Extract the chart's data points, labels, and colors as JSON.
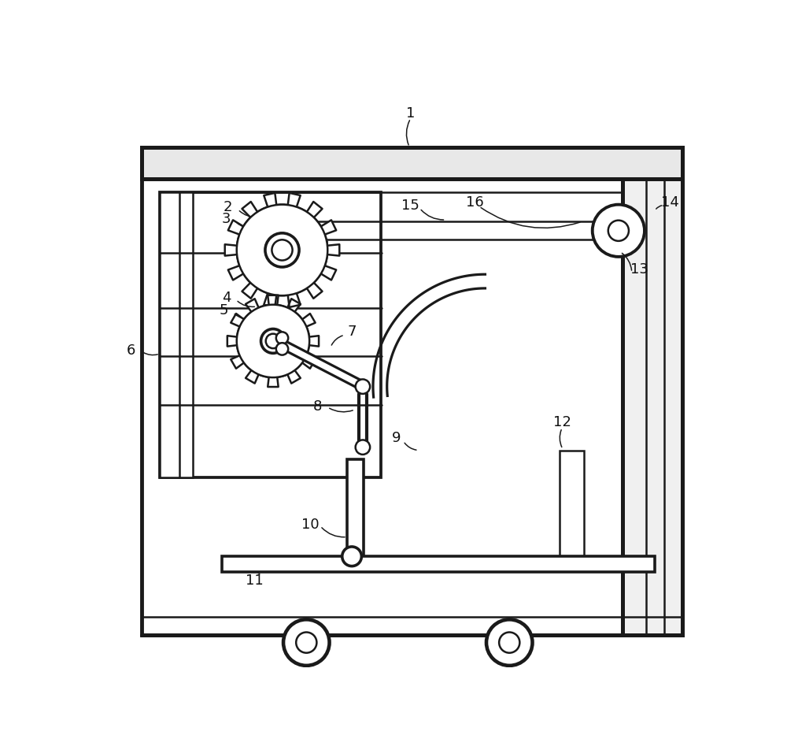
{
  "bg": "#ffffff",
  "lc": "#1a1a1a",
  "lw": 1.8,
  "tlw": 3.5
}
